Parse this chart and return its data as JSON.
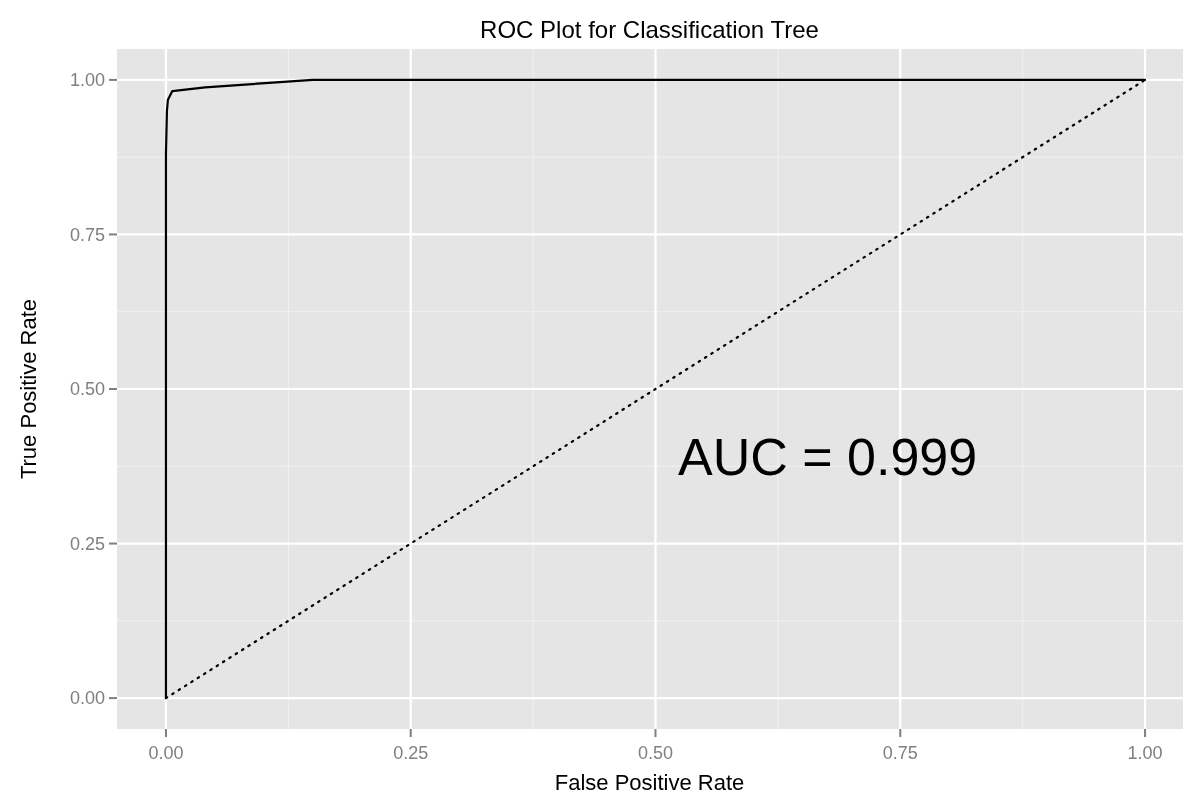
{
  "chart_data": {
    "type": "line",
    "title": "ROC Plot for Classification Tree",
    "xlabel": "False Positive Rate",
    "ylabel": "True Positive Rate",
    "xlim": [
      -0.05,
      1.05
    ],
    "ylim": [
      -0.05,
      1.05
    ],
    "xticks": [
      {
        "value": 0,
        "label": "0.00"
      },
      {
        "value": 0.25,
        "label": "0.25"
      },
      {
        "value": 0.5,
        "label": "0.50"
      },
      {
        "value": 0.75,
        "label": "0.75"
      },
      {
        "value": 1,
        "label": "1.00"
      }
    ],
    "yticks": [
      {
        "value": 0,
        "label": "0.00"
      },
      {
        "value": 0.25,
        "label": "0.25"
      },
      {
        "value": 0.5,
        "label": "0.50"
      },
      {
        "value": 0.75,
        "label": "0.75"
      },
      {
        "value": 1,
        "label": "1.00"
      }
    ],
    "grid": true,
    "annotations": [
      "AUC = 0.999"
    ],
    "series": [
      {
        "color": "#000000",
        "line_style": "solid",
        "x": [
          0,
          0,
          0.001,
          0.002,
          0.0065,
          0.04,
          0.15,
          1
        ],
        "values": [
          0,
          0.88,
          0.95,
          0.968,
          0.982,
          0.988,
          1,
          1
        ]
      },
      {
        "color": "#000000",
        "line_style": "dotted",
        "x": [
          0,
          1
        ],
        "values": [
          0,
          1
        ]
      }
    ]
  }
}
